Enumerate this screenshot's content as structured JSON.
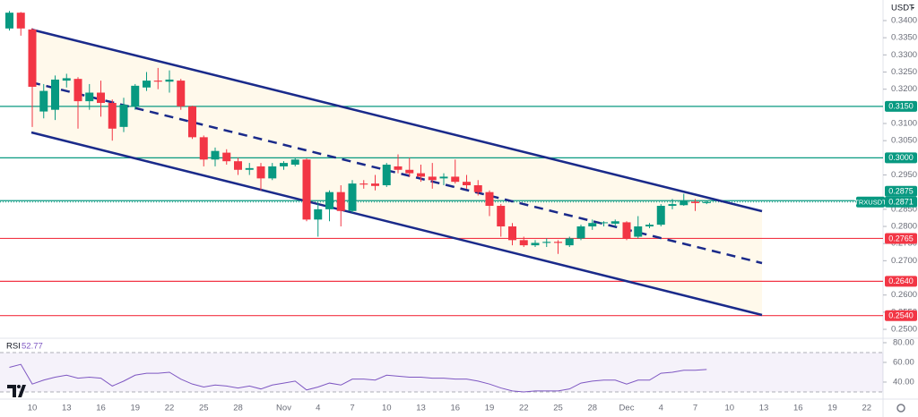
{
  "chart_data": {
    "type": "candlestick",
    "currency": "USDT",
    "categories": [
      null,
      null,
      "10",
      null,
      null,
      "13",
      null,
      null,
      "16",
      null,
      null,
      "19",
      null,
      null,
      "22",
      null,
      null,
      "25",
      null,
      null,
      "28",
      null,
      null,
      null,
      "Nov",
      null,
      null,
      "4",
      null,
      null,
      "7",
      null,
      null,
      "10",
      null,
      null,
      "13",
      null,
      null,
      "16",
      null,
      null,
      "19",
      null,
      null,
      "22",
      null,
      null,
      "25",
      null,
      null,
      "28",
      null,
      null,
      "Dec",
      null,
      null,
      "4",
      null,
      null,
      "7",
      null,
      null,
      "10",
      null,
      null,
      "13",
      null,
      null,
      "16",
      null,
      null,
      "19",
      null,
      null,
      "22",
      null
    ],
    "open": [
      0.3377,
      0.3423,
      0.3374,
      0.3135,
      0.314,
      0.3225,
      0.323,
      0.3165,
      0.319,
      0.316,
      0.309,
      0.315,
      0.3205,
      0.3225,
      0.3222,
      0.3225,
      0.315,
      0.306,
      0.2995,
      0.3015,
      0.299,
      0.2965,
      0.2975,
      0.294,
      0.2975,
      0.298,
      0.2995,
      0.282,
      0.285,
      0.29,
      0.2845,
      0.2925,
      0.2925,
      0.292,
      0.2975,
      0.2965,
      0.2955,
      0.2945,
      0.294,
      0.2945,
      0.293,
      0.292,
      0.29,
      0.286,
      0.28,
      0.276,
      0.2745,
      0.2752,
      0.2755,
      0.2745,
      0.2765,
      0.28,
      0.281,
      0.2808,
      0.2812,
      0.277,
      0.28,
      0.2805,
      0.286,
      0.2862,
      0.2872,
      0.2868,
      null,
      null,
      null,
      null,
      null,
      null,
      null,
      null,
      null,
      null,
      null,
      null,
      null,
      null,
      null
    ],
    "high": [
      0.3428,
      0.3425,
      0.3378,
      0.3215,
      0.324,
      0.3245,
      0.3235,
      0.3215,
      0.3225,
      0.317,
      0.3175,
      0.3215,
      0.325,
      0.3262,
      0.3255,
      0.323,
      0.3152,
      0.3065,
      0.303,
      0.3025,
      0.3,
      0.2985,
      0.2985,
      0.2985,
      0.299,
      0.3,
      0.2998,
      0.287,
      0.2905,
      0.292,
      0.2935,
      0.2935,
      0.295,
      0.2985,
      0.301,
      0.3,
      0.298,
      0.2985,
      0.2955,
      0.2995,
      0.295,
      0.2935,
      0.2905,
      0.2865,
      0.281,
      0.277,
      0.276,
      0.2765,
      0.276,
      0.277,
      0.2805,
      0.282,
      0.2815,
      0.282,
      0.2815,
      0.283,
      0.281,
      0.2865,
      0.288,
      0.2895,
      0.288,
      0.2875,
      null,
      null,
      null,
      null,
      null,
      null,
      null,
      null,
      null,
      null,
      null,
      null,
      null,
      null,
      null
    ],
    "low": [
      0.3371,
      0.3356,
      0.309,
      0.3115,
      0.311,
      0.3205,
      0.3085,
      0.314,
      0.312,
      0.305,
      0.3075,
      0.314,
      0.3195,
      0.32,
      0.319,
      0.314,
      0.3055,
      0.2975,
      0.2975,
      0.298,
      0.295,
      0.295,
      0.2905,
      0.2935,
      0.2965,
      0.2975,
      0.2815,
      0.277,
      0.2815,
      0.28,
      0.284,
      0.291,
      0.2905,
      0.2915,
      0.2955,
      0.2945,
      0.293,
      0.291,
      0.292,
      0.2925,
      0.291,
      0.289,
      0.283,
      0.277,
      0.2745,
      0.274,
      0.274,
      0.274,
      0.272,
      0.274,
      0.276,
      0.279,
      0.28,
      0.28,
      0.276,
      0.2765,
      0.2795,
      0.28,
      0.285,
      0.286,
      0.2845,
      0.2865,
      null,
      null,
      null,
      null,
      null,
      null,
      null,
      null,
      null,
      null,
      null,
      null,
      null,
      null,
      null
    ],
    "close": [
      0.3423,
      0.3377,
      0.3207,
      0.3195,
      0.3228,
      0.3232,
      0.3165,
      0.319,
      0.316,
      0.3085,
      0.3155,
      0.321,
      0.3225,
      0.3222,
      0.3228,
      0.315,
      0.306,
      0.2995,
      0.302,
      0.299,
      0.2965,
      0.297,
      0.294,
      0.2975,
      0.2985,
      0.2995,
      0.282,
      0.285,
      0.29,
      0.2845,
      0.2925,
      0.2922,
      0.2918,
      0.298,
      0.2965,
      0.2955,
      0.2945,
      0.2935,
      0.2945,
      0.293,
      0.292,
      0.29,
      0.286,
      0.28,
      0.276,
      0.2745,
      0.2752,
      0.2755,
      0.2752,
      0.2765,
      0.28,
      0.281,
      0.2812,
      0.2815,
      0.2765,
      0.28,
      0.2805,
      0.286,
      0.2865,
      0.2875,
      0.2868,
      0.2871,
      null,
      null,
      null,
      null,
      null,
      null,
      null,
      null,
      null,
      null,
      null,
      null,
      null,
      null,
      null
    ],
    "up_color": "#089981",
    "down_color": "#f23645",
    "ylim": [
      0.2474,
      0.346
    ],
    "yticks": [
      {
        "value": 0.34,
        "label": "0.3400"
      },
      {
        "value": 0.335,
        "label": "0.3350"
      },
      {
        "value": 0.33,
        "label": "0.3300"
      },
      {
        "value": 0.325,
        "label": "0.3250"
      },
      {
        "value": 0.32,
        "label": "0.3200"
      },
      {
        "value": 0.31,
        "label": "0.3100"
      },
      {
        "value": 0.305,
        "label": "0.3050"
      },
      {
        "value": 0.295,
        "label": "0.2950"
      },
      {
        "value": 0.285,
        "label": "0.2850"
      },
      {
        "value": 0.28,
        "label": "0.2800"
      },
      {
        "value": 0.275,
        "label": "0.2750"
      },
      {
        "value": 0.27,
        "label": "0.2700"
      },
      {
        "value": 0.26,
        "label": "0.2600"
      },
      {
        "value": 0.255,
        "label": "0.2550"
      },
      {
        "value": 0.25,
        "label": "0.2500"
      }
    ],
    "price_lines": [
      {
        "value": 0.315,
        "label": "0.3150",
        "color": "#089981"
      },
      {
        "value": 0.3,
        "label": "0.3000",
        "color": "#089981"
      },
      {
        "value": 0.2875,
        "label": "0.2875",
        "color": "#089981"
      },
      {
        "value": 0.2765,
        "label": "0.2765",
        "color": "#f23645"
      },
      {
        "value": 0.264,
        "label": "0.2640",
        "color": "#f23645"
      },
      {
        "value": 0.254,
        "label": "0.2540",
        "color": "#f23645"
      }
    ],
    "last_price": {
      "symbol": "TRXUSDT",
      "value": 0.2871,
      "label": "0.2871",
      "color": "#089981"
    },
    "rsi": {
      "name": "RSI",
      "color": "#7e57c2",
      "values": [
        55,
        58,
        38,
        42,
        45,
        47,
        44,
        45,
        44,
        36,
        41,
        47,
        49,
        49,
        50,
        43,
        38,
        35,
        37,
        36,
        34,
        36,
        33,
        37,
        39,
        41,
        32,
        35,
        39,
        37,
        43,
        43,
        42,
        47,
        46,
        45,
        45,
        44,
        44,
        43,
        43,
        41,
        38,
        34,
        31,
        30,
        31,
        31,
        31,
        33,
        39,
        41,
        42,
        42,
        38,
        42,
        42,
        49,
        50,
        52,
        52,
        52.77,
        null,
        null,
        null,
        null,
        null,
        null,
        null,
        null,
        null,
        null,
        null,
        null,
        null,
        null,
        null
      ],
      "ylim": [
        22.7,
        82.7
      ],
      "yticks": [
        {
          "value": 80,
          "label": "80.00"
        },
        {
          "value": 60,
          "label": "60.00"
        },
        {
          "value": 40,
          "label": "40.00"
        }
      ],
      "band": [
        30,
        70
      ]
    }
  }
}
